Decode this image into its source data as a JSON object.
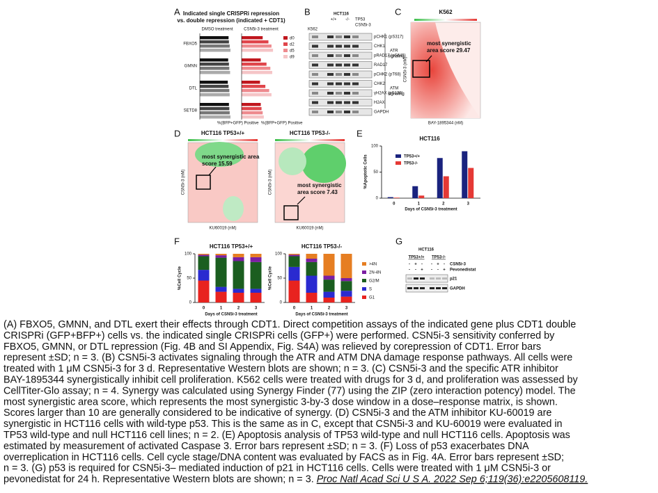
{
  "panels": {
    "A": {
      "label": "A",
      "title": [
        "Indicated single CRISPRi repression",
        "vs. double repression (indicated + CDT1)"
      ],
      "groups": [
        "DMSO treatment",
        "CSN5i-3 treatment"
      ],
      "genes": [
        "FBXO5",
        "GMNN",
        "DTL",
        "SETD8"
      ],
      "legend": [
        "d0",
        "d2",
        "d5",
        "d9"
      ],
      "dmso_colors": [
        "#111111",
        "#444444",
        "#777777",
        "#aaaaaa"
      ],
      "csn_colors": [
        "#c0171e",
        "#e0454b",
        "#ee8a8e",
        "#f5c4c6"
      ],
      "xlabel": "%(BFP+GFP) Positive",
      "xlim": [
        0,
        100
      ],
      "dmso": [
        [
          75,
          76,
          78,
          80
        ],
        [
          74,
          76,
          77,
          79
        ],
        [
          73,
          75,
          77,
          78
        ],
        [
          76,
          77,
          78,
          80
        ]
      ],
      "csn": [
        [
          55,
          70,
          78,
          82
        ],
        [
          50,
          65,
          75,
          80
        ],
        [
          48,
          62,
          72,
          78
        ],
        [
          50,
          52,
          55,
          58
        ]
      ]
    },
    "B": {
      "label": "B",
      "k562": "K562",
      "hct": "HCT116",
      "genotypes": [
        "+/+",
        "-/-"
      ],
      "tp53": "TP53",
      "csn": "CSN5i-3",
      "bands": [
        "pCHK1 (pS317)",
        "CHK1",
        "pRAD17 (pS645)",
        "RAD17",
        "pCHK2 (pT68)",
        "CHK2",
        "γH2AX (pS139)",
        "H2AX",
        "GAPDH"
      ],
      "atr": [
        "ATR",
        "signaling"
      ],
      "atm": [
        "ATM",
        "signaling"
      ]
    },
    "C": {
      "label": "C",
      "title": "K562",
      "annotation": [
        "most synergistic",
        "area score 29.47"
      ],
      "xlabel": "BAY-1895344 (nM)",
      "ylabel": "CSN5i-3 (nM)"
    },
    "D": {
      "label": "D",
      "titles": [
        "HCT116 TP53+/+",
        "HCT116 TP53-/-"
      ],
      "annotations": [
        [
          "most synergistic area",
          "score 15.59"
        ],
        [
          "most synergistic",
          "area score 7.43"
        ]
      ],
      "xlabel": "KU60019 (nM)",
      "ylabel": "CSN5i-3 (nM)"
    },
    "E": {
      "label": "E",
      "type": "bar",
      "title": "HCT116",
      "ylabel": "%Apoptotic Cells",
      "xlabel": "Days of CSN5i-3 treatment",
      "categories": [
        "0",
        "1",
        "2",
        "3"
      ],
      "ylim": [
        0,
        100
      ],
      "yticks": [
        0,
        50,
        100
      ],
      "series": [
        {
          "name": "TP53+/+",
          "color": "#1a237e",
          "values": [
            2,
            23,
            77,
            90
          ]
        },
        {
          "name": "TP53-/-",
          "color": "#e53935",
          "values": [
            1,
            5,
            42,
            58
          ]
        }
      ]
    },
    "F": {
      "label": "F",
      "type": "stacked_bar",
      "titles": [
        "HCT116 TP53+/+",
        "HCT116 TP53-/-"
      ],
      "ylabel": "%Cell Cycle",
      "xlabel": "Days of CSN5i-3 treatment",
      "categories": [
        "0",
        "1",
        "2",
        "3"
      ],
      "ylim": [
        0,
        100
      ],
      "yticks": [
        0,
        50,
        100
      ],
      "charts": [
        [
          {
            "name": ">4N",
            "color": "#e67e22",
            "values": [
              2,
              3,
              7,
              7
            ]
          },
          {
            "name": "2N-4N",
            "color": "#7b1fa2",
            "values": [
              3,
              5,
              8,
              10
            ]
          },
          {
            "name": "G2/M",
            "color": "#1b5e20",
            "values": [
              28,
              60,
              57,
              55
            ]
          },
          {
            "name": "S",
            "color": "#2a2ad0",
            "values": [
              22,
              10,
              8,
              8
            ]
          },
          {
            "name": "G1",
            "color": "#e8231f",
            "values": [
              45,
              22,
              20,
              20
            ]
          }
        ],
        [
          {
            "name": ">4N",
            "color": "#e67e22",
            "values": [
              2,
              10,
              45,
              50
            ]
          },
          {
            "name": "2N-4N",
            "color": "#7b1fa2",
            "values": [
              3,
              7,
              8,
              6
            ]
          },
          {
            "name": "G2/M",
            "color": "#1b5e20",
            "values": [
              22,
              28,
              25,
              20
            ]
          },
          {
            "name": "S",
            "color": "#2a2ad0",
            "values": [
              28,
              35,
              12,
              12
            ]
          },
          {
            "name": "G1",
            "color": "#e8231f",
            "values": [
              45,
              20,
              10,
              12
            ]
          }
        ]
      ]
    },
    "G": {
      "label": "G",
      "title": "HCT116",
      "genotypes": [
        "TP53+/+",
        "TP53-/-"
      ],
      "rows": [
        "CSN5i-3",
        "Pevonedistat"
      ],
      "signs": [
        [
          "-",
          "+",
          "-",
          "-",
          "+",
          "-"
        ],
        [
          "-",
          "-",
          "+",
          "-",
          "-",
          "+"
        ]
      ],
      "bands": [
        "p21",
        "GAPDH"
      ]
    }
  },
  "caption": {
    "lines": [
      "(A) FBXO5, GMNN, and DTL exert their effects through CDT1. Direct competition assays of the indicated gene plus CDT1 double",
      "CRISPRi (GFP+BFP+) cells vs. the indicated single CRISPRi cells (GFP+) were performed. CSN5i-3 sensitivity conferred by",
      "FBXO5, GMNN, or DTL repression (Fig. 4B and SI Appendix, Fig. S4A) was relieved by corepression of CDT1. Error bars",
      "represent ±SD; n = 3. (B) CSN5i-3 activates signaling through the ATR and ATM DNA damage response pathways. All cells were",
      "treated with 1 μM CSN5i-3 for 3 d. Representative Western blots are shown; n = 3. (C) CSN5i-3 and the specific ATR inhibitor",
      "BAY-1895344 synergistically inhibit cell proliferation. K562 cells were treated with drugs for 3 d, and proliferation was assessed by",
      "CellTiter-Glo assay; n = 4. Synergy was calculated using Synergy Finder (77) using the ZIP (zero interaction potency) model. The",
      "most synergistic area score, which represents the most synergistic 3-by-3 dose window in a dose–response matrix, is shown.",
      "Scores larger than 10 are generally considered to be indicative of synergy. (D) CSN5i-3 and the ATM inhibitor KU-60019 are",
      "synergistic in HCT116 cells with wild-type p53. This is the same as in C, except that CSN5i-3 and KU-60019 were evaluated in",
      "TP53 wild-type and null HCT116 cell lines; n = 2. (E) Apoptosis analysis of TP53 wild-type and null HCT116 cells. Apoptosis was",
      "estimated by measurement of activated Caspase 3. Error bars represent ±SD; n = 3. (F) Loss of p53 exacerbates DNA",
      "overreplication in HCT116 cells. Cell cycle stage/DNA content was evaluated by FACS as in Fig. 4A. Error bars represent ±SD;",
      "n = 3. (G) p53 is required for CSN5i-3– mediated induction of p21 in HCT116 cells. Cells were treated with 1 μM CSN5i-3 or",
      "pevonedistat for 24 h. Representative Western blots are shown; n = 3. "
    ],
    "citation": "Proc Natl Acad Sci U S A. 2022 Sep 6;119(36):e2205608119."
  }
}
